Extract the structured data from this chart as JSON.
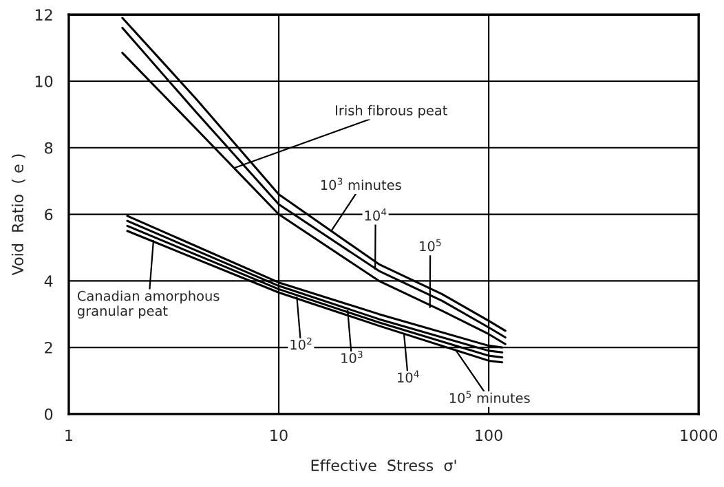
{
  "chart_data": {
    "type": "line",
    "xlabel": "Effective  Stress  σ'",
    "ylabel": "Void  Ratio  ( e )",
    "log": "x",
    "xlim": [
      1,
      1000
    ],
    "xticks": [
      1,
      10,
      100,
      1000
    ],
    "ylim": [
      0,
      12
    ],
    "yticks": [
      0,
      2,
      4,
      6,
      8,
      10,
      12
    ],
    "grid": true,
    "legend": false,
    "marker": "none",
    "line_style": "solid",
    "series": [
      {
        "color": "#000000",
        "x": [
          1.8,
          4,
          10,
          30,
          60,
          100,
          120
        ],
        "values": [
          11.9,
          9.5,
          6.6,
          4.5,
          3.6,
          2.8,
          2.5
        ]
      },
      {
        "color": "#000000",
        "x": [
          1.8,
          4,
          10,
          30,
          60,
          100,
          120
        ],
        "values": [
          11.6,
          9.1,
          6.3,
          4.3,
          3.4,
          2.6,
          2.3
        ]
      },
      {
        "color": "#000000",
        "x": [
          1.8,
          4,
          10,
          30,
          60,
          100,
          120
        ],
        "values": [
          10.85,
          8.6,
          6.0,
          4.0,
          3.1,
          2.4,
          2.1
        ]
      },
      {
        "color": "#000000",
        "x": [
          1.9,
          10,
          30,
          100,
          116
        ],
        "values": [
          5.95,
          3.95,
          3.0,
          2.05,
          2.0
        ]
      },
      {
        "color": "#000000",
        "x": [
          1.9,
          10,
          30,
          100,
          116
        ],
        "values": [
          5.8,
          3.85,
          2.85,
          1.9,
          1.85
        ]
      },
      {
        "color": "#000000",
        "x": [
          1.9,
          10,
          30,
          100,
          116
        ],
        "values": [
          5.65,
          3.75,
          2.75,
          1.75,
          1.7
        ]
      },
      {
        "color": "#000000",
        "x": [
          1.9,
          10,
          30,
          100,
          116
        ],
        "values": [
          5.5,
          3.65,
          2.65,
          1.6,
          1.55
        ]
      }
    ],
    "annotations": [
      {
        "text": "Irish fibrous peat",
        "x": 6.2,
        "y": 7.4
      },
      {
        "text": "10$^{3}$ minutes",
        "x": 17.8,
        "y": 5.5
      },
      {
        "text": "10$^{4}$",
        "x": 28.8,
        "y": 4.35
      },
      {
        "text": "10$^{5}$",
        "x": 52.5,
        "y": 3.2
      },
      {
        "text": "Canadian amorphous\ngranular peat",
        "x": 2.53,
        "y": 5.2
      },
      {
        "text": "10$^{2}$",
        "x": 12.2,
        "y": 3.5
      },
      {
        "text": "10$^{3}$",
        "x": 21.3,
        "y": 3.1
      },
      {
        "text": "10$^{4}$",
        "x": 39.5,
        "y": 2.4
      },
      {
        "text": "10$^{5}$ minutes",
        "x": 70,
        "y": 1.9
      }
    ]
  }
}
